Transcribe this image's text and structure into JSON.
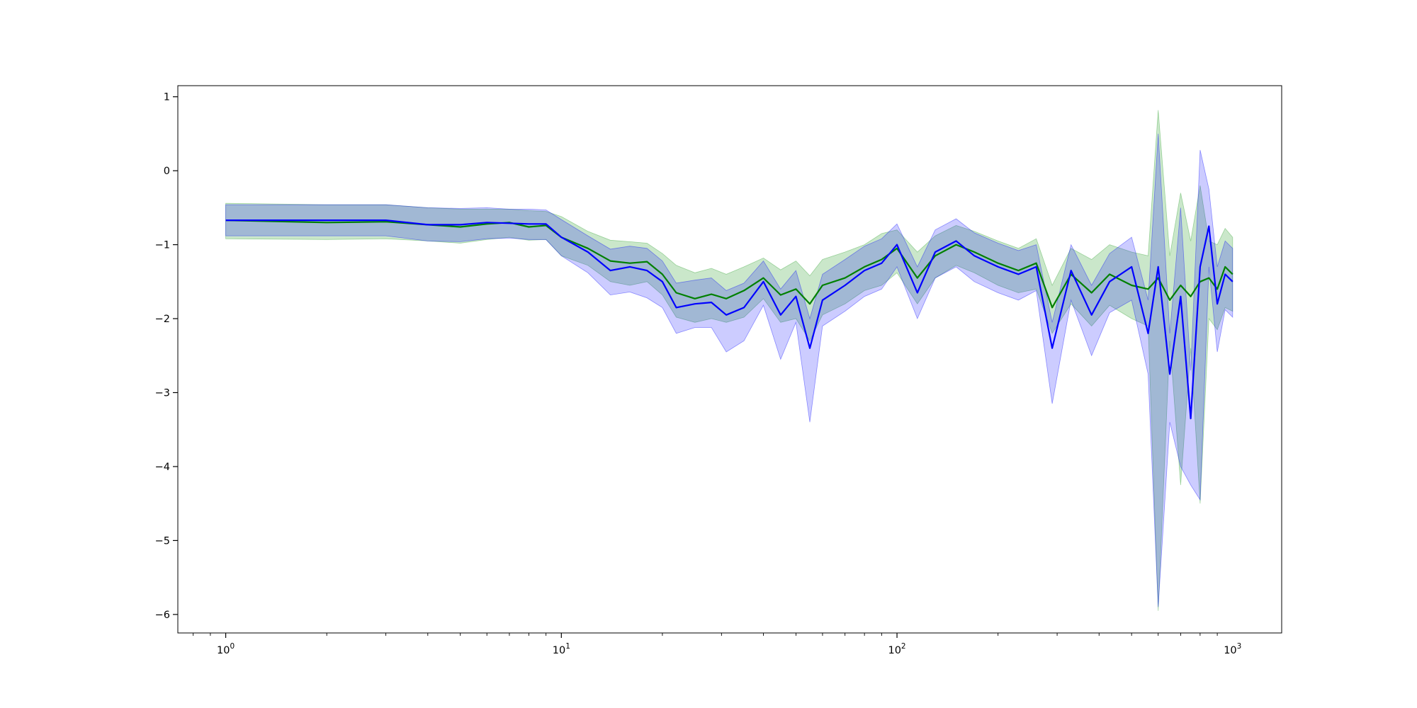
{
  "chart_data": {
    "type": "line",
    "xscale": "log",
    "xlim": [
      0.72,
      1400
    ],
    "ylim": [
      -6.25,
      1.15
    ],
    "grid": false,
    "legend": "none",
    "title": "",
    "xlabel": "",
    "ylabel": "",
    "x_ticks": [
      {
        "value": 1,
        "base": "10",
        "exp": "0"
      },
      {
        "value": 10,
        "base": "10",
        "exp": "1"
      },
      {
        "value": 100,
        "base": "10",
        "exp": "2"
      },
      {
        "value": 1000,
        "base": "10",
        "exp": "3"
      }
    ],
    "y_ticks": [
      {
        "value": 1,
        "label": "1"
      },
      {
        "value": 0,
        "label": "0"
      },
      {
        "value": -1,
        "label": "−1"
      },
      {
        "value": -2,
        "label": "−2"
      },
      {
        "value": -3,
        "label": "−3"
      },
      {
        "value": -4,
        "label": "−4"
      },
      {
        "value": -5,
        "label": "−5"
      },
      {
        "value": -6,
        "label": "−6"
      }
    ],
    "series": [
      {
        "color": "#008000",
        "band_color": "#2ca02c",
        "band_opacity": 0.25,
        "x": [
          1,
          2,
          3,
          4,
          5,
          6,
          7,
          8,
          9,
          10,
          12,
          14,
          16,
          18,
          20,
          22,
          25,
          28,
          31,
          35,
          40,
          45,
          50,
          55,
          60,
          70,
          80,
          90,
          100,
          115,
          130,
          150,
          170,
          200,
          230,
          260,
          290,
          330,
          380,
          430,
          500,
          560,
          600,
          650,
          700,
          750,
          800,
          850,
          900,
          950,
          1000
        ],
        "y": [
          -0.67,
          -0.7,
          -0.69,
          -0.73,
          -0.76,
          -0.72,
          -0.7,
          -0.76,
          -0.74,
          -0.9,
          -1.05,
          -1.22,
          -1.25,
          -1.23,
          -1.4,
          -1.65,
          -1.73,
          -1.67,
          -1.73,
          -1.62,
          -1.45,
          -1.68,
          -1.6,
          -1.8,
          -1.55,
          -1.45,
          -1.3,
          -1.2,
          -1.05,
          -1.45,
          -1.15,
          -1.0,
          -1.1,
          -1.25,
          -1.35,
          -1.25,
          -1.85,
          -1.4,
          -1.65,
          -1.4,
          -1.55,
          -1.6,
          -1.45,
          -1.75,
          -1.55,
          -1.7,
          -1.5,
          -1.45,
          -1.6,
          -1.3,
          -1.4
        ],
        "upper": [
          -0.44,
          -0.46,
          -0.46,
          -0.5,
          -0.52,
          -0.52,
          -0.52,
          -0.54,
          -0.55,
          -0.62,
          -0.82,
          -0.94,
          -0.96,
          -0.98,
          -1.12,
          -1.28,
          -1.38,
          -1.32,
          -1.4,
          -1.3,
          -1.18,
          -1.34,
          -1.22,
          -1.42,
          -1.2,
          -1.1,
          -1.0,
          -0.85,
          -0.8,
          -1.1,
          -0.88,
          -0.74,
          -0.82,
          -0.95,
          -1.05,
          -0.92,
          -1.55,
          -1.05,
          -1.2,
          -1.0,
          -1.1,
          -1.15,
          0.82,
          -1.15,
          -0.3,
          -0.95,
          -0.2,
          -0.95,
          -1.0,
          -0.78,
          -0.9
        ],
        "lower": [
          -0.92,
          -0.93,
          -0.92,
          -0.95,
          -0.98,
          -0.93,
          -0.9,
          -0.94,
          -0.93,
          -1.15,
          -1.28,
          -1.5,
          -1.55,
          -1.5,
          -1.68,
          -1.98,
          -2.05,
          -2.0,
          -2.05,
          -1.98,
          -1.73,
          -2.05,
          -2.0,
          -2.3,
          -1.95,
          -1.8,
          -1.62,
          -1.55,
          -1.38,
          -1.8,
          -1.45,
          -1.28,
          -1.38,
          -1.55,
          -1.65,
          -1.6,
          -2.2,
          -1.8,
          -2.1,
          -1.82,
          -2.0,
          -2.1,
          -5.95,
          -2.3,
          -4.25,
          -2.4,
          -4.5,
          -2.0,
          -2.15,
          -1.85,
          -1.9
        ]
      },
      {
        "color": "#0000ff",
        "band_color": "#0000ff",
        "band_opacity": 0.2,
        "x": [
          1,
          2,
          3,
          4,
          5,
          6,
          7,
          8,
          9,
          10,
          12,
          14,
          16,
          18,
          20,
          22,
          25,
          28,
          31,
          35,
          40,
          45,
          50,
          55,
          60,
          70,
          80,
          90,
          100,
          115,
          130,
          150,
          170,
          200,
          230,
          260,
          290,
          330,
          380,
          430,
          500,
          560,
          600,
          650,
          700,
          750,
          800,
          850,
          900,
          950,
          1000
        ],
        "y": [
          -0.67,
          -0.67,
          -0.67,
          -0.73,
          -0.73,
          -0.7,
          -0.71,
          -0.72,
          -0.72,
          -0.9,
          -1.1,
          -1.35,
          -1.3,
          -1.35,
          -1.5,
          -1.85,
          -1.8,
          -1.78,
          -1.95,
          -1.85,
          -1.5,
          -1.95,
          -1.7,
          -2.4,
          -1.75,
          -1.55,
          -1.35,
          -1.25,
          -1.0,
          -1.65,
          -1.1,
          -0.95,
          -1.15,
          -1.3,
          -1.4,
          -1.3,
          -2.4,
          -1.35,
          -1.95,
          -1.5,
          -1.3,
          -2.2,
          -1.3,
          -2.75,
          -1.7,
          -3.35,
          -1.3,
          -0.75,
          -1.8,
          -1.4,
          -1.5
        ],
        "upper": [
          -0.46,
          -0.46,
          -0.46,
          -0.5,
          -0.51,
          -0.5,
          -0.52,
          -0.52,
          -0.53,
          -0.66,
          -0.88,
          -1.06,
          -1.02,
          -1.05,
          -1.22,
          -1.52,
          -1.48,
          -1.45,
          -1.62,
          -1.52,
          -1.22,
          -1.6,
          -1.35,
          -2.0,
          -1.4,
          -1.2,
          -1.02,
          -0.92,
          -0.72,
          -1.3,
          -0.8,
          -0.65,
          -0.84,
          -0.98,
          -1.08,
          -1.0,
          -2.05,
          -1.0,
          -1.55,
          -1.12,
          -0.9,
          -1.75,
          0.5,
          -2.2,
          -0.5,
          -2.7,
          0.28,
          -0.25,
          -1.3,
          -0.95,
          -1.05
        ],
        "lower": [
          -0.88,
          -0.88,
          -0.88,
          -0.95,
          -0.96,
          -0.92,
          -0.91,
          -0.93,
          -0.93,
          -1.15,
          -1.38,
          -1.68,
          -1.64,
          -1.72,
          -1.85,
          -2.2,
          -2.12,
          -2.12,
          -2.45,
          -2.3,
          -1.82,
          -2.55,
          -2.05,
          -3.4,
          -2.1,
          -1.9,
          -1.7,
          -1.6,
          -1.3,
          -2.0,
          -1.45,
          -1.3,
          -1.5,
          -1.65,
          -1.75,
          -1.62,
          -3.15,
          -1.75,
          -2.5,
          -1.92,
          -1.75,
          -2.75,
          -5.9,
          -3.4,
          -4.0,
          -4.25,
          -4.45,
          -1.3,
          -2.45,
          -1.88,
          -1.98
        ]
      }
    ]
  }
}
